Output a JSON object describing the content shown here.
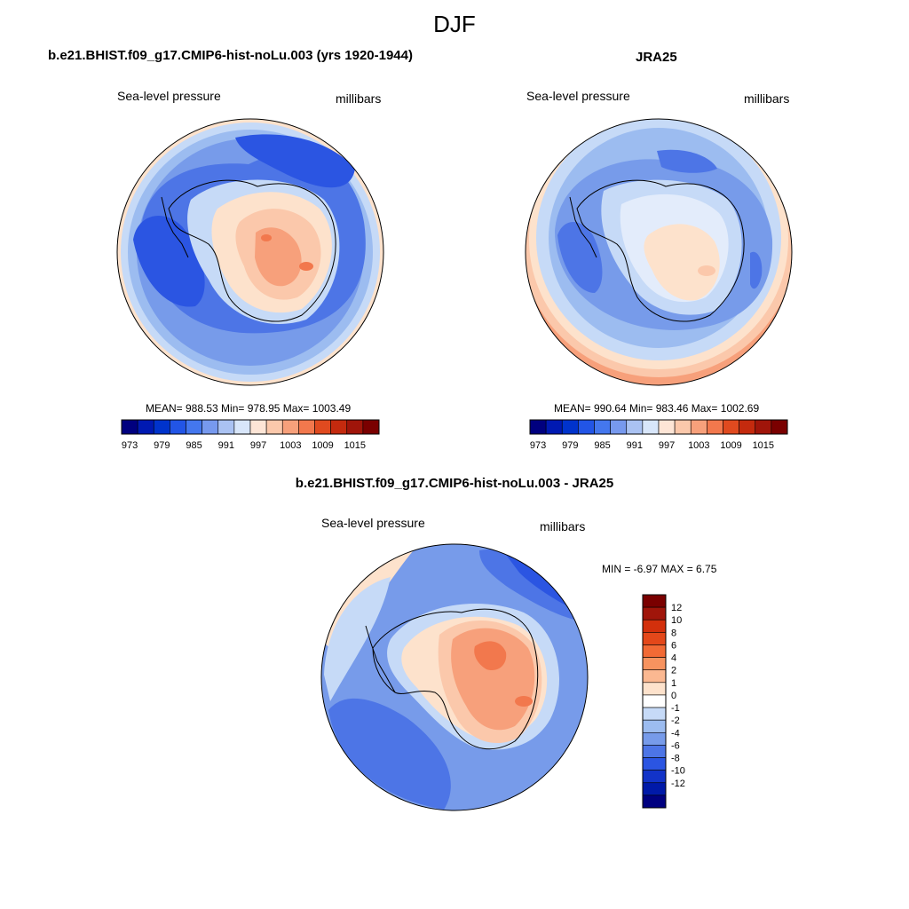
{
  "figure_title": "DJF",
  "panels": {
    "model": {
      "title": "b.e21.BHIST.f09_g17.CMIP6-hist-noLu.003 (yrs 1920-1944)",
      "variable": "Sea-level pressure",
      "units": "millibars",
      "stats": "MEAN= 988.53  Min= 978.95  Max= 1003.49"
    },
    "obs": {
      "title": "JRA25",
      "variable": "Sea-level pressure",
      "units": "millibars",
      "stats": "MEAN= 990.64  Min= 983.46  Max= 1002.69"
    },
    "diff": {
      "title": "b.e21.BHIST.f09_g17.CMIP6-hist-noLu.003 - JRA25",
      "variable": "Sea-level pressure",
      "units": "millibars",
      "stats": "MIN =  -6.97 MAX =   6.75"
    }
  },
  "colorbar_horizontal": {
    "colors": [
      "#00007f",
      "#0019b2",
      "#0033cc",
      "#2255e6",
      "#4477ee",
      "#7799ee",
      "#aac2f2",
      "#d8e6fa",
      "#fde5d6",
      "#fbc8ab",
      "#f7a07b",
      "#f2784d",
      "#e04a1f",
      "#c42a0e",
      "#a0150a",
      "#7a0000"
    ],
    "tick_labels": [
      "973",
      "979",
      "985",
      "991",
      "997",
      "1003",
      "1009",
      "1015"
    ]
  },
  "colorbar_vertical": {
    "colors_top_to_bottom": [
      "#7a0000",
      "#a0150a",
      "#d3300c",
      "#e4481a",
      "#f26a35",
      "#f7935f",
      "#fbb891",
      "#fde2cc",
      "#ffffff",
      "#c6daf7",
      "#9cbcf0",
      "#779bea",
      "#4d75e6",
      "#2b55e2",
      "#1233c8",
      "#0019a8",
      "#000080"
    ],
    "tick_labels": [
      "12",
      "10",
      "8",
      "6",
      "4",
      "2",
      "1",
      "0",
      "-1",
      "-2",
      "-4",
      "-6",
      "-8",
      "-10",
      "-12"
    ]
  },
  "map_colors": {
    "deep_blue": "#2b55e2",
    "blue": "#4d75e6",
    "mid_blue": "#779bea",
    "light_blue": "#9cbcf0",
    "pale_blue": "#c6daf7",
    "very_pale_blue": "#e3ecfb",
    "pale_orange": "#fde2cc",
    "light_orange": "#fbc8ab",
    "orange": "#f7a07b",
    "dark_orange": "#f2784d",
    "red_orange": "#e04a1f"
  }
}
